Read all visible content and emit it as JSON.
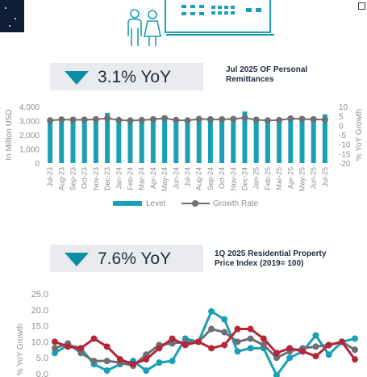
{
  "banners": [
    {
      "value": "3.1% YoY",
      "caption_line1": "Jul 2025 OF Personal",
      "caption_line2": "Remittances"
    },
    {
      "value": "7.6% YoY",
      "caption_line1": "1Q 2025 Residential Property",
      "caption_line2": "Price Index (2019= 100)"
    }
  ],
  "colors": {
    "teal": "#1a9fb5",
    "grey": "#6c7075",
    "crimson": "#b3263b",
    "dark_teal": "#0e8ea5",
    "banner_bg": "#e9ebee"
  },
  "chart_data": [
    {
      "type": "bar",
      "ylabel": "In Million USD",
      "y2label": "% YoY Growth",
      "ylim": [
        0,
        4000
      ],
      "yticks": [
        "4,000",
        "3,000",
        "2,000",
        "1,000",
        "0"
      ],
      "y2lim": [
        -20,
        10
      ],
      "y2ticks": [
        "10",
        "5",
        "0",
        "-5",
        "-10",
        "-15",
        "-20"
      ],
      "categories": [
        "Jul-23",
        "Aug-23",
        "Sep-23",
        "Oct-23",
        "Nov-23",
        "Dec-23",
        "Jan-24",
        "Feb-24",
        "Mar-24",
        "Apr-24",
        "May-24",
        "Jun-24",
        "Jul-24",
        "Aug-24",
        "Sep-24",
        "Oct-24",
        "Nov-24",
        "Dec-24",
        "Jan-25",
        "Feb-25",
        "Mar-25",
        "Apr-25",
        "May-25",
        "Jun-25",
        "Jul-25"
      ],
      "series": [
        {
          "name": "Level",
          "type": "bar",
          "values": [
            3050,
            3050,
            3000,
            3000,
            3050,
            3550,
            2950,
            2950,
            3000,
            3050,
            3100,
            2950,
            3000,
            3100,
            3050,
            3200,
            3150,
            3650,
            3050,
            2950,
            3000,
            3100,
            3200,
            3050,
            3450
          ]
        },
        {
          "name": "Growth Rate",
          "type": "line",
          "axis": "right",
          "values": [
            2.6,
            3.1,
            3.0,
            3.0,
            3.2,
            3.8,
            2.8,
            2.6,
            2.8,
            3.2,
            3.8,
            2.8,
            2.6,
            3.4,
            3.2,
            3.2,
            3.4,
            4.0,
            3.0,
            2.6,
            2.8,
            3.6,
            3.4,
            3.2,
            3.1
          ]
        }
      ],
      "legend": [
        "Level",
        "Growth Rate"
      ]
    },
    {
      "type": "line",
      "ylabel": "% YoY Growth",
      "ylim": [
        0,
        25
      ],
      "yticks": [
        "25.0",
        "20.0",
        "15.0",
        "10.0",
        "5.0",
        "0.0"
      ],
      "series": [
        {
          "color": "teal",
          "values": [
            6.5,
            9.0,
            8.0,
            3.0,
            1.0,
            3.0,
            4.0,
            1.0,
            3.5,
            4.0,
            11.0,
            10.0,
            19.5,
            17.0,
            7.0,
            8.0,
            8.0,
            -0.5,
            5.0,
            7.0,
            12.0,
            6.0,
            10.0,
            11.0
          ]
        },
        {
          "color": "grey",
          "values": [
            8.0,
            9.5,
            6.5,
            4.0,
            4.0,
            3.5,
            2.5,
            6.0,
            9.0,
            9.5,
            10.0,
            10.0,
            14.0,
            13.0,
            10.0,
            11.0,
            9.0,
            5.0,
            7.0,
            8.0,
            8.5,
            9.0,
            10.0,
            7.5
          ]
        },
        {
          "color": "crimson",
          "values": [
            10.0,
            8.5,
            8.0,
            11.0,
            8.5,
            4.5,
            3.0,
            4.5,
            8.0,
            11.0,
            9.0,
            10.0,
            8.0,
            9.0,
            14.0,
            14.0,
            11.0,
            6.5,
            8.0,
            7.0,
            5.5,
            9.0,
            10.0,
            4.5
          ]
        }
      ]
    }
  ]
}
